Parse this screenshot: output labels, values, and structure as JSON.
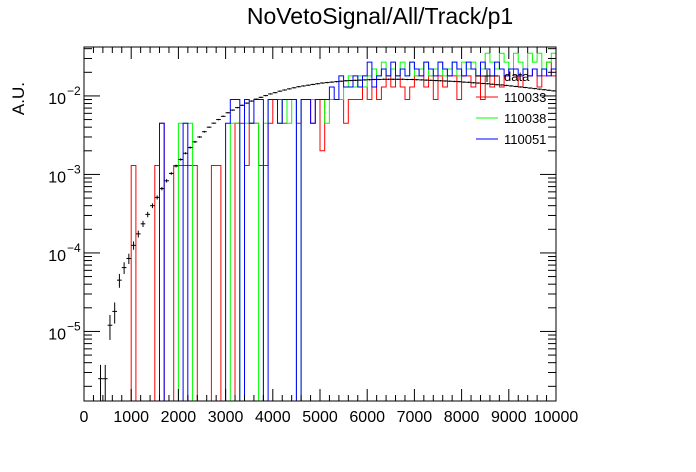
{
  "chart_data": {
    "type": "step-histogram",
    "title": "NoVetoSignal/All/Track/p1",
    "ylabel": "A.U.",
    "xlabel": "",
    "x_range": [
      0,
      10000
    ],
    "y_scale": "log",
    "y_range": [
      1.3e-06,
      0.042
    ],
    "x_ticks": [
      0,
      1000,
      2000,
      3000,
      4000,
      5000,
      6000,
      7000,
      8000,
      9000,
      10000
    ],
    "x_tick_labels": [
      "0",
      "1000",
      "2000",
      "3000",
      "4000",
      "5000",
      "6000",
      "7000",
      "8000",
      "9000",
      "10000"
    ],
    "y_ticks": [
      1e-05,
      0.0001,
      0.001,
      0.01
    ],
    "y_tick_labels": [
      {
        "base": "10",
        "exp": "−5"
      },
      {
        "base": "10",
        "exp": "−4"
      },
      {
        "base": "10",
        "exp": "−3"
      },
      {
        "base": "10",
        "exp": "−2"
      }
    ],
    "legend_placement": "top-right",
    "grid": false,
    "series": [
      {
        "name": "data",
        "style": "points-with-errors",
        "color": "#000000",
        "bin_width": 100,
        "x": [
          350,
          450,
          550,
          650,
          750,
          850,
          950,
          1050,
          1150,
          1250,
          1350,
          1450,
          1550,
          1650,
          1750,
          1850,
          1950,
          2050,
          2150,
          2250,
          2350,
          2450,
          2550,
          2650,
          2750,
          2850,
          2950,
          3050,
          3150,
          3250,
          3350,
          3450,
          3550,
          3650,
          3750,
          3850,
          3950,
          4050,
          4150,
          4250,
          4350,
          4450,
          4550,
          4650,
          4750,
          4850,
          4950,
          5050,
          5150,
          5250,
          5350,
          5450,
          5550,
          5650,
          5750,
          5850,
          5950,
          6050,
          6150,
          6250,
          6350,
          6450,
          6550,
          6650,
          6750,
          6850,
          6950,
          7050,
          7150,
          7250,
          7350,
          7450,
          7550,
          7650,
          7750,
          7850,
          7950,
          8050,
          8150,
          8250,
          8350,
          8450,
          8550,
          8650,
          8750,
          8850,
          8950,
          9050,
          9150,
          9250,
          9350,
          9450,
          9550,
          9650,
          9750,
          9850,
          9950
        ],
        "y": [
          2.5e-06,
          2.5e-06,
          1.2e-05,
          1.8e-05,
          4.5e-05,
          6.5e-05,
          8.5e-05,
          0.000125,
          0.000175,
          0.000235,
          0.00031,
          0.0004,
          0.00051,
          0.00066,
          0.00083,
          0.00103,
          0.00128,
          0.00155,
          0.00186,
          0.0022,
          0.0026,
          0.003,
          0.0035,
          0.004,
          0.0045,
          0.005,
          0.0055,
          0.0061,
          0.0066,
          0.0071,
          0.0076,
          0.0081,
          0.0086,
          0.0091,
          0.0096,
          0.0101,
          0.0106,
          0.011,
          0.0115,
          0.0119,
          0.0123,
          0.0127,
          0.0131,
          0.0134,
          0.0137,
          0.014,
          0.0143,
          0.0146,
          0.0148,
          0.015,
          0.0152,
          0.0154,
          0.0156,
          0.0157,
          0.0158,
          0.0159,
          0.016,
          0.0161,
          0.0162,
          0.0162,
          0.0163,
          0.0163,
          0.0163,
          0.0163,
          0.0163,
          0.0162,
          0.0162,
          0.0161,
          0.016,
          0.0159,
          0.0158,
          0.0157,
          0.0156,
          0.0155,
          0.0154,
          0.0153,
          0.0152,
          0.015,
          0.0149,
          0.0147,
          0.0146,
          0.0144,
          0.0143,
          0.0141,
          0.0139,
          0.0138,
          0.0136,
          0.0134,
          0.0132,
          0.013,
          0.0128,
          0.0126,
          0.0124,
          0.0122,
          0.012,
          0.0118,
          0.0116
        ],
        "rel_err": [
          0.5,
          0.5,
          0.35,
          0.3,
          0.2,
          0.17,
          0.15,
          0.12,
          0.1,
          0.09,
          0.08,
          0.07,
          0.06,
          0.05,
          0.05,
          0.04,
          0.04,
          0.035,
          0.03,
          0.03,
          0.03,
          0.025,
          0.025,
          0.02,
          0.02,
          0.02,
          0.02,
          0.02,
          0.02,
          0.02,
          0.02,
          0.02,
          0.02,
          0.02,
          0.02,
          0.02,
          0.02,
          0.02,
          0.02,
          0.02,
          0.02,
          0.02,
          0.02,
          0.02,
          0.02,
          0.02,
          0.02,
          0.02,
          0.02,
          0.02,
          0.02,
          0.02,
          0.02,
          0.02,
          0.02,
          0.02,
          0.02,
          0.02,
          0.02,
          0.02,
          0.02,
          0.02,
          0.02,
          0.02,
          0.02,
          0.02,
          0.02,
          0.02,
          0.02,
          0.02,
          0.02,
          0.02,
          0.02,
          0.02,
          0.02,
          0.02,
          0.02,
          0.02,
          0.02,
          0.02,
          0.02,
          0.02,
          0.02,
          0.02,
          0.02,
          0.02,
          0.02,
          0.02,
          0.02,
          0.02,
          0.02,
          0.02,
          0.02,
          0.02,
          0.02,
          0.02,
          0.02
        ]
      },
      {
        "name": "110033",
        "style": "step",
        "color": "#ff0000",
        "bin_edges": [
          0,
          100,
          200,
          300,
          400,
          500,
          600,
          700,
          800,
          900,
          1000,
          1100,
          1200,
          1300,
          1400,
          1500,
          1600,
          1700,
          1800,
          1900,
          2000,
          2100,
          2200,
          2300,
          2400,
          2500,
          2600,
          2700,
          2800,
          2900,
          3000,
          3100,
          3200,
          3300,
          3400,
          3500,
          3600,
          3700,
          3800,
          3900,
          4000,
          4100,
          4200,
          4300,
          4400,
          4500,
          4600,
          4700,
          4800,
          4900,
          5000,
          5100,
          5200,
          5300,
          5400,
          5500,
          5600,
          5700,
          5800,
          5900,
          6000,
          6100,
          6200,
          6300,
          6400,
          6500,
          6600,
          6700,
          6800,
          6900,
          7000,
          7100,
          7200,
          7300,
          7400,
          7500,
          7600,
          7700,
          7800,
          7900,
          8000,
          8100,
          8200,
          8300,
          8400,
          8500,
          8600,
          8700,
          8800,
          8900,
          9000,
          9100,
          9200,
          9300,
          9400,
          9500,
          9600,
          9700,
          9800,
          9900,
          10000
        ],
        "values": [
          0,
          0,
          0,
          0,
          0,
          0,
          0,
          0,
          0,
          0,
          0.0013,
          0,
          0,
          0,
          0,
          0.0013,
          0.0045,
          0,
          0,
          0.0013,
          0.0013,
          0.0013,
          0.0013,
          0.0013,
          0,
          0,
          0,
          0.0013,
          0.0013,
          0,
          0,
          0,
          0.0045,
          0.0045,
          0.0013,
          0.0045,
          0.0045,
          0.0013,
          0.0013,
          0.0045,
          0.009,
          0.009,
          0.0045,
          0.009,
          0.009,
          0.0045,
          0.009,
          0.009,
          0.0045,
          0.009,
          0.002,
          0.009,
          0.009,
          0.009,
          0.009,
          0.0045,
          0.009,
          0.009,
          0.009,
          0.013,
          0.009,
          0.013,
          0.009,
          0.013,
          0.018,
          0.013,
          0.018,
          0.013,
          0.009,
          0.013,
          0.018,
          0.018,
          0.013,
          0.018,
          0.009,
          0.018,
          0.013,
          0.018,
          0.018,
          0.009,
          0.018,
          0.018,
          0.013,
          0.018,
          0.009,
          0.018,
          0.013,
          0.018,
          0.013,
          0.018,
          0.022,
          0.018,
          0.013,
          0.022,
          0.018,
          0.022,
          0.013,
          0.018,
          0.027,
          0.018
        ]
      },
      {
        "name": "110038",
        "style": "step",
        "color": "#00ff00",
        "bin_edges": [
          0,
          100,
          200,
          300,
          400,
          500,
          600,
          700,
          800,
          900,
          1000,
          1100,
          1200,
          1300,
          1400,
          1500,
          1600,
          1700,
          1800,
          1900,
          2000,
          2100,
          2200,
          2300,
          2400,
          2500,
          2600,
          2700,
          2800,
          2900,
          3000,
          3100,
          3200,
          3300,
          3400,
          3500,
          3600,
          3700,
          3800,
          3900,
          4000,
          4100,
          4200,
          4300,
          4400,
          4500,
          4600,
          4700,
          4800,
          4900,
          5000,
          5100,
          5200,
          5300,
          5400,
          5500,
          5600,
          5700,
          5800,
          5900,
          6000,
          6100,
          6200,
          6300,
          6400,
          6500,
          6600,
          6700,
          6800,
          6900,
          7000,
          7100,
          7200,
          7300,
          7400,
          7500,
          7600,
          7700,
          7800,
          7900,
          8000,
          8100,
          8200,
          8300,
          8400,
          8500,
          8600,
          8700,
          8800,
          8900,
          9000,
          9100,
          9200,
          9300,
          9400,
          9500,
          9600,
          9700,
          9800,
          9900,
          10000
        ],
        "values": [
          0,
          0,
          0,
          0,
          0,
          0,
          0,
          0,
          0,
          0,
          0,
          0,
          0,
          0,
          0,
          0,
          0,
          0,
          0,
          0,
          0.0045,
          0.0045,
          0.0045,
          0,
          0,
          0,
          0,
          0,
          0,
          0,
          0,
          0.0045,
          0.0045,
          0,
          0.0045,
          0.0045,
          0.0045,
          0,
          0.0045,
          0.009,
          0.009,
          0.0045,
          0.009,
          0.0045,
          0.009,
          0,
          0.009,
          0.009,
          0.009,
          0.009,
          0.009,
          0.0045,
          0.009,
          0.009,
          0.009,
          0.013,
          0.018,
          0.013,
          0.018,
          0.013,
          0.018,
          0.022,
          0.018,
          0.027,
          0.018,
          0.022,
          0.018,
          0.027,
          0.018,
          0.027,
          0.018,
          0.022,
          0.027,
          0.018,
          0.022,
          0.027,
          0.018,
          0.022,
          0.027,
          0.018,
          0.027,
          0.022,
          0.027,
          0.018,
          0.022,
          0.035,
          0.027,
          0.022,
          0.035,
          0.027,
          0.022,
          0.035,
          0.027,
          0.022,
          0.035,
          0.027,
          0.035,
          0.022,
          0.027,
          0.035
        ]
      },
      {
        "name": "110051",
        "style": "step",
        "color": "#0000ff",
        "bin_edges": [
          0,
          100,
          200,
          300,
          400,
          500,
          600,
          700,
          800,
          900,
          1000,
          1100,
          1200,
          1300,
          1400,
          1500,
          1600,
          1700,
          1800,
          1900,
          2000,
          2100,
          2200,
          2300,
          2400,
          2500,
          2600,
          2700,
          2800,
          2900,
          3000,
          3100,
          3200,
          3300,
          3400,
          3500,
          3600,
          3700,
          3800,
          3900,
          4000,
          4100,
          4200,
          4300,
          4400,
          4500,
          4600,
          4700,
          4800,
          4900,
          5000,
          5100,
          5200,
          5300,
          5400,
          5500,
          5600,
          5700,
          5800,
          5900,
          6000,
          6100,
          6200,
          6300,
          6400,
          6500,
          6600,
          6700,
          6800,
          6900,
          7000,
          7100,
          7200,
          7300,
          7400,
          7500,
          7600,
          7700,
          7800,
          7900,
          8000,
          8100,
          8200,
          8300,
          8400,
          8500,
          8600,
          8700,
          8800,
          8900,
          9000,
          9100,
          9200,
          9300,
          9400,
          9500,
          9600,
          9700,
          9800,
          9900,
          10000
        ],
        "values": [
          0,
          0,
          0,
          0,
          0,
          0,
          0,
          0,
          0,
          0,
          0,
          0,
          0,
          0,
          0,
          0,
          0.0045,
          0,
          0,
          0,
          0,
          0.0045,
          0,
          0,
          0,
          0,
          0,
          0,
          0,
          0,
          0.0045,
          0.009,
          0.009,
          0,
          0.009,
          0.0045,
          0.009,
          0.009,
          0,
          0.009,
          0.009,
          0.0045,
          0.009,
          0.009,
          0.009,
          0,
          0.009,
          0.009,
          0.0045,
          0.009,
          0.009,
          0.009,
          0.013,
          0.009,
          0.018,
          0.013,
          0.013,
          0.018,
          0.013,
          0.018,
          0.027,
          0.013,
          0.018,
          0.022,
          0.018,
          0.027,
          0.018,
          0.022,
          0.018,
          0.027,
          0.022,
          0.018,
          0.027,
          0.022,
          0.018,
          0.027,
          0.022,
          0.018,
          0.027,
          0.022,
          0.018,
          0.027,
          0.022,
          0.018,
          0.027,
          0.022,
          0.018,
          0.027,
          0.022,
          0.018,
          0.022,
          0.022,
          0.018,
          0.022,
          0.018,
          0.022,
          0.018,
          0.022,
          0.018,
          0.022
        ]
      }
    ]
  }
}
